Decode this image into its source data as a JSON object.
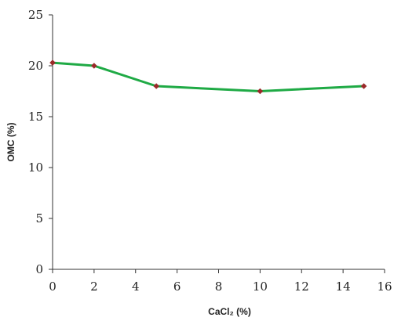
{
  "chart_data": {
    "type": "line",
    "xlabel": "CaCl₂ (%)",
    "ylabel": "OMC (%)",
    "xlim": [
      0,
      16
    ],
    "ylim": [
      0,
      25
    ],
    "x_ticks": [
      0,
      2,
      4,
      6,
      8,
      10,
      12,
      14,
      16
    ],
    "y_ticks": [
      0,
      5,
      10,
      15,
      20,
      25
    ],
    "grid": false,
    "series": [
      {
        "x": [
          0,
          2,
          5,
          10,
          15
        ],
        "values": [
          20.3,
          20.0,
          18.0,
          17.5,
          18.0
        ],
        "line_color": "#1faa45",
        "marker_color": "#9b2a2a"
      }
    ]
  }
}
